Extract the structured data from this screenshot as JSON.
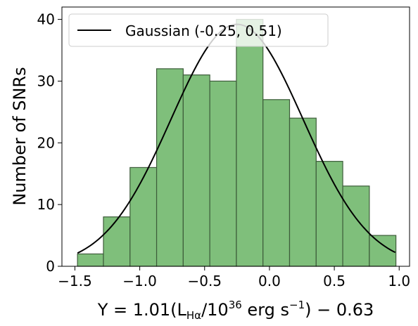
{
  "chart_data": {
    "type": "bar",
    "subtype": "histogram",
    "bins": [
      {
        "x0": -1.48,
        "x1": -1.28,
        "count": 2
      },
      {
        "x0": -1.28,
        "x1": -1.075,
        "count": 8
      },
      {
        "x0": -1.075,
        "x1": -0.87,
        "count": 16
      },
      {
        "x0": -0.87,
        "x1": -0.665,
        "count": 32
      },
      {
        "x0": -0.665,
        "x1": -0.46,
        "count": 31
      },
      {
        "x0": -0.46,
        "x1": -0.255,
        "count": 30
      },
      {
        "x0": -0.255,
        "x1": -0.05,
        "count": 40
      },
      {
        "x0": -0.05,
        "x1": 0.155,
        "count": 27
      },
      {
        "x0": 0.155,
        "x1": 0.36,
        "count": 24
      },
      {
        "x0": 0.36,
        "x1": 0.565,
        "count": 17
      },
      {
        "x0": 0.565,
        "x1": 0.77,
        "count": 13
      },
      {
        "x0": 0.77,
        "x1": 0.975,
        "count": 5
      }
    ],
    "curve": {
      "name": "Gaussian (-0.25, 0.51)",
      "mean": -0.25,
      "sigma": 0.51,
      "peak": 39.2,
      "x_range": [
        -1.48,
        0.97
      ]
    },
    "xlabel": "Y = 1.01(L_Hα/10^36 erg s^-1) - 0.63",
    "xlabel_parts": {
      "y": "Y",
      "eq": " = 1.01(L",
      "sub": "Hα",
      "mid": "/10",
      "sup1": "36",
      "unit": " erg s",
      "sup2": "−1",
      "tail": ") − 0.63"
    },
    "ylabel": "Number of SNRs",
    "xlim": [
      -1.6,
      1.08
    ],
    "ylim": [
      0,
      42
    ],
    "xticks": [
      -1.5,
      -1.0,
      -0.5,
      0.0,
      0.5,
      1.0
    ],
    "xtick_labels": [
      "−1.5",
      "−1.0",
      "−0.5",
      "0.0",
      "0.5",
      "1.0"
    ],
    "yticks": [
      0,
      10,
      20,
      30,
      40
    ],
    "ytick_labels": [
      "0",
      "10",
      "20",
      "30",
      "40"
    ],
    "legend_position": "top-left",
    "colors": {
      "bar_fill": "#7fbf7b",
      "bar_edge": "#3d5c3a",
      "curve": "#000000"
    }
  }
}
